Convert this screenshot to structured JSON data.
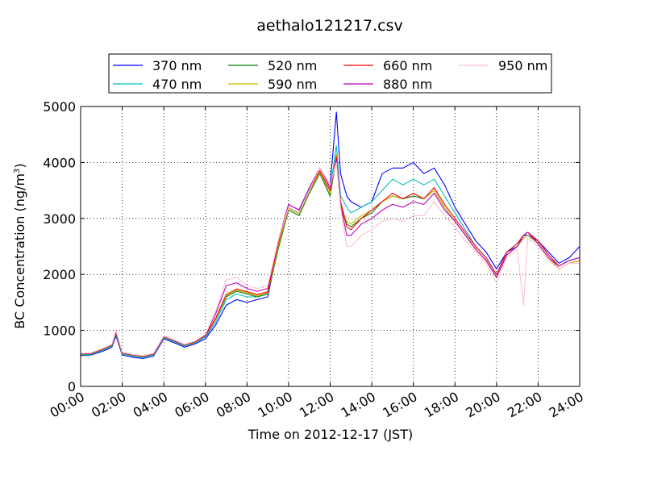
{
  "chart_data": {
    "type": "line",
    "title": "aethalo121217.csv",
    "xlabel": "Time on 2012-12-17 (JST)",
    "ylabel": "BC Concentration (ng/m",
    "ylabel_sup": "3",
    "ylabel_end": ")",
    "xlim": [
      0,
      24
    ],
    "ylim": [
      0,
      5000
    ],
    "grid": true,
    "legend_position": "top",
    "x_ticks": [
      0,
      2,
      4,
      6,
      8,
      10,
      12,
      14,
      16,
      18,
      20,
      22,
      24
    ],
    "x_tick_labels": [
      "00:00",
      "02:00",
      "04:00",
      "06:00",
      "08:00",
      "10:00",
      "12:00",
      "14:00",
      "16:00",
      "18:00",
      "20:00",
      "22:00",
      "24:00"
    ],
    "y_ticks": [
      0,
      1000,
      2000,
      3000,
      4000,
      5000
    ],
    "y_tick_labels": [
      "0",
      "1000",
      "2000",
      "3000",
      "4000",
      "5000"
    ],
    "x": [
      0,
      0.5,
      1,
      1.5,
      1.7,
      2,
      2.5,
      3,
      3.5,
      4,
      4.5,
      5,
      5.5,
      6,
      6.5,
      7,
      7.5,
      8,
      8.5,
      9,
      9.5,
      10,
      10.5,
      11,
      11.5,
      12,
      12.3,
      12.5,
      12.8,
      13,
      13.5,
      14,
      14.5,
      15,
      15.5,
      16,
      16.5,
      17,
      17.5,
      18,
      18.5,
      19,
      19.5,
      20,
      20.5,
      21,
      21.3,
      21.5,
      22,
      22.5,
      23,
      23.5,
      24
    ],
    "series": [
      {
        "name": "370 nm",
        "color": "#0000ff",
        "values": [
          550,
          560,
          620,
          700,
          900,
          560,
          520,
          500,
          540,
          850,
          780,
          700,
          760,
          850,
          1100,
          1450,
          1550,
          1500,
          1550,
          1600,
          2500,
          3200,
          3100,
          3500,
          3900,
          3600,
          4900,
          3800,
          3400,
          3300,
          3200,
          3300,
          3800,
          3900,
          3900,
          4000,
          3800,
          3900,
          3600,
          3200,
          2900,
          2600,
          2400,
          2100,
          2400,
          2500,
          2700,
          2700,
          2600,
          2400,
          2200,
          2300,
          2500
        ]
      },
      {
        "name": "470 nm",
        "color": "#00bfbf",
        "values": [
          560,
          570,
          640,
          720,
          930,
          580,
          540,
          520,
          560,
          870,
          800,
          720,
          780,
          880,
          1150,
          1550,
          1650,
          1600,
          1600,
          1650,
          2550,
          3250,
          3150,
          3550,
          3850,
          3500,
          4300,
          3400,
          3200,
          3100,
          3200,
          3300,
          3500,
          3700,
          3600,
          3700,
          3600,
          3700,
          3400,
          3100,
          2800,
          2500,
          2300,
          2000,
          2400,
          2550,
          2700,
          2750,
          2600,
          2350,
          2150,
          2250,
          2300
        ]
      },
      {
        "name": "520 nm",
        "color": "#007f00",
        "values": [
          570,
          580,
          650,
          730,
          950,
          590,
          550,
          530,
          570,
          880,
          810,
          730,
          790,
          900,
          1200,
          1600,
          1700,
          1650,
          1600,
          1650,
          2450,
          3150,
          3050,
          3450,
          3800,
          3400,
          4100,
          3200,
          2900,
          2850,
          3000,
          3100,
          3300,
          3400,
          3350,
          3400,
          3350,
          3500,
          3200,
          2950,
          2700,
          2450,
          2250,
          1950,
          2350,
          2500,
          2650,
          2700,
          2550,
          2300,
          2100,
          2200,
          2250
        ]
      },
      {
        "name": "590 nm",
        "color": "#bfbf00",
        "values": [
          575,
          585,
          655,
          735,
          960,
          595,
          555,
          535,
          575,
          885,
          815,
          735,
          795,
          905,
          1210,
          1620,
          1720,
          1670,
          1620,
          1670,
          2500,
          3180,
          3080,
          3480,
          3820,
          3450,
          4150,
          3250,
          2950,
          2900,
          3050,
          3150,
          3300,
          3400,
          3350,
          3450,
          3350,
          3500,
          3200,
          2950,
          2700,
          2450,
          2250,
          1950,
          2350,
          2500,
          2650,
          2700,
          2550,
          2300,
          2100,
          2200,
          2250
        ]
      },
      {
        "name": "660 nm",
        "color": "#ff0000",
        "values": [
          580,
          590,
          660,
          740,
          970,
          600,
          560,
          540,
          580,
          890,
          820,
          740,
          800,
          910,
          1220,
          1640,
          1740,
          1690,
          1640,
          1690,
          2550,
          3200,
          3100,
          3500,
          3850,
          3500,
          4100,
          3300,
          2850,
          2800,
          3000,
          3150,
          3300,
          3450,
          3350,
          3450,
          3350,
          3550,
          3250,
          3000,
          2750,
          2500,
          2300,
          2000,
          2400,
          2550,
          2700,
          2750,
          2600,
          2350,
          2150,
          2250,
          2300
        ]
      },
      {
        "name": "880 nm",
        "color": "#bf00bf",
        "values": [
          585,
          595,
          665,
          745,
          980,
          605,
          565,
          545,
          585,
          895,
          825,
          745,
          805,
          920,
          1300,
          1800,
          1850,
          1750,
          1700,
          1750,
          2600,
          3250,
          3150,
          3550,
          3900,
          3550,
          4050,
          3250,
          2700,
          2700,
          2900,
          3000,
          3150,
          3250,
          3200,
          3300,
          3250,
          3450,
          3150,
          2950,
          2700,
          2450,
          2250,
          1950,
          2350,
          2500,
          2700,
          2750,
          2550,
          2300,
          2150,
          2250,
          2300
        ]
      },
      {
        "name": "950 nm",
        "color": "#ffc0cb",
        "values": [
          590,
          600,
          670,
          750,
          1000,
          610,
          570,
          550,
          590,
          900,
          830,
          750,
          810,
          930,
          1350,
          1900,
          1950,
          1800,
          1750,
          1800,
          2600,
          3200,
          3100,
          3500,
          3900,
          3600,
          4000,
          3200,
          2500,
          2500,
          2700,
          2800,
          2950,
          3000,
          2950,
          3050,
          3050,
          3300,
          3050,
          2850,
          2600,
          2400,
          2200,
          1850,
          2300,
          2450,
          1450,
          2650,
          2500,
          2250,
          2100,
          2200,
          2200
        ]
      }
    ]
  }
}
